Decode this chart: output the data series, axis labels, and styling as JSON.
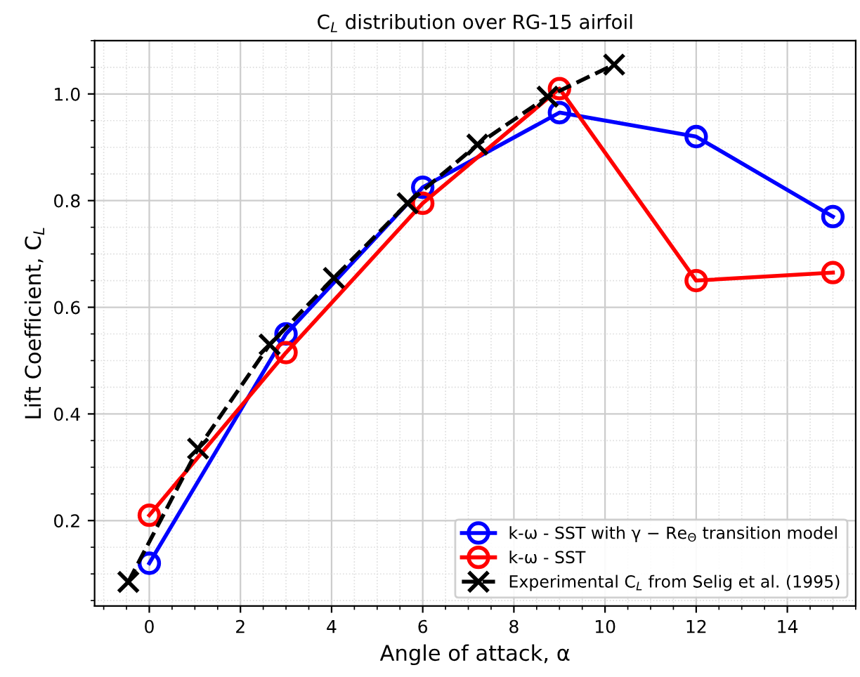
{
  "chart_data": {
    "type": "line",
    "title": "C$_{L}$ distribution over RG-15 airfoil",
    "xlabel": "Angle of attack, α",
    "ylabel": "Lift Coefficient, C$_{L}$",
    "xlim": [
      -1.2,
      15.5
    ],
    "ylim": [
      0.04,
      1.1
    ],
    "xticks": [
      0,
      2,
      4,
      6,
      8,
      10,
      12,
      14
    ],
    "yticks": [
      0.2,
      0.4,
      0.6,
      0.8,
      {
        "value": 1,
        "label": "1.0"
      }
    ],
    "grid": true,
    "legend": "bottom right",
    "series": [
      {
        "name": "k-ω - SST with γ − Re$_{Θ}$ transition model",
        "color": "#0000ff",
        "marker": "circle",
        "line_style": "solid",
        "x": [
          0,
          3,
          6,
          9,
          12,
          15
        ],
        "values": [
          0.12,
          0.55,
          0.825,
          0.965,
          0.92,
          0.77
        ]
      },
      {
        "name": "k-ω - SST",
        "color": "#ff0000",
        "marker": "circle",
        "line_style": "solid",
        "x": [
          0,
          3,
          6,
          9,
          12,
          15
        ],
        "values": [
          0.21,
          0.515,
          0.795,
          1.01,
          0.65,
          0.665
        ]
      },
      {
        "name": "Experimental C$_{L}$ from Selig et al. (1995)",
        "color": "#000000",
        "marker": "cross",
        "line_style": "dashed",
        "x": [
          -0.46,
          1.07,
          2.64,
          4.05,
          5.67,
          7.2,
          8.74,
          10.2
        ],
        "values": [
          0.085,
          0.335,
          0.53,
          0.655,
          0.795,
          0.905,
          0.995,
          1.055
        ]
      }
    ]
  }
}
